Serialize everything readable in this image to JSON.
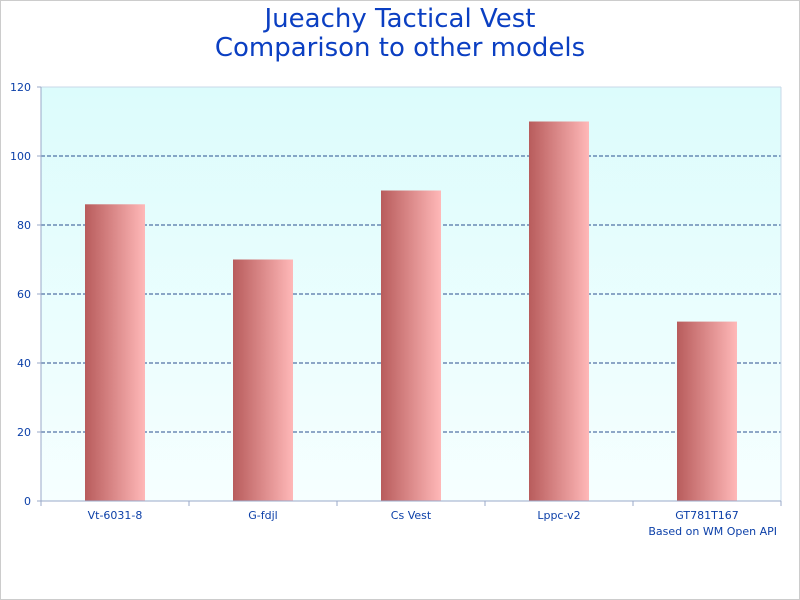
{
  "chart_data": {
    "type": "bar",
    "title_lines": [
      "Jueachy Tactical Vest",
      "Comparison to other models"
    ],
    "categories": [
      "Vt-6031-8",
      "G-fdjl",
      "Cs Vest",
      "Lppc-v2",
      "GT781T167"
    ],
    "values": [
      86,
      70,
      90,
      110,
      52
    ],
    "ylim": [
      0,
      120
    ],
    "yticks": [
      0,
      20,
      40,
      60,
      80,
      100,
      120
    ],
    "grid": true,
    "grid_style": "dashed",
    "bar_gradient": [
      "#b85c5c",
      "#ffb8b8"
    ],
    "plot_background": [
      "#dcfcfc",
      "#f6ffff"
    ],
    "grid_color": "#2a4f8f",
    "text_color": "#0b3fa8"
  },
  "footnote": "Based on WM Open API"
}
